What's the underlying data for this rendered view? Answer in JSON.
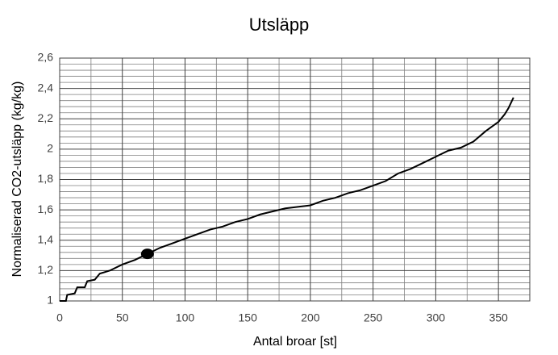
{
  "chart_data": {
    "type": "line",
    "title": "Utsläpp",
    "xlabel": "Antal broar [st]",
    "ylabel": "Normaliserad CO2-utsläpp (kg/kg)",
    "x": [
      0,
      5,
      6,
      12,
      14,
      20,
      22,
      28,
      32,
      40,
      50,
      60,
      70,
      80,
      90,
      100,
      110,
      120,
      130,
      140,
      150,
      160,
      170,
      180,
      190,
      200,
      210,
      220,
      230,
      240,
      250,
      260,
      270,
      280,
      290,
      300,
      310,
      320,
      330,
      340,
      350,
      355,
      358,
      362
    ],
    "values": [
      1.0,
      1.0,
      1.04,
      1.05,
      1.09,
      1.09,
      1.13,
      1.14,
      1.18,
      1.2,
      1.24,
      1.27,
      1.31,
      1.35,
      1.38,
      1.41,
      1.44,
      1.47,
      1.49,
      1.52,
      1.54,
      1.57,
      1.59,
      1.61,
      1.62,
      1.63,
      1.66,
      1.68,
      1.71,
      1.73,
      1.76,
      1.79,
      1.84,
      1.87,
      1.91,
      1.95,
      1.99,
      2.01,
      2.05,
      2.12,
      2.18,
      2.23,
      2.27,
      2.34
    ],
    "color": "#000000",
    "highlight": {
      "x": 70,
      "y": 1.31
    },
    "xlim": [
      0,
      375
    ],
    "ylim": [
      1,
      2.6
    ],
    "xticks": [
      0,
      50,
      100,
      150,
      200,
      250,
      300,
      350
    ],
    "yticks": [
      1,
      {
        "value": 1.2,
        "label": "1,2"
      },
      {
        "value": 1.4,
        "label": "1,4"
      },
      {
        "value": 1.6,
        "label": "1,6"
      },
      {
        "value": 1.8,
        "label": "1,8"
      },
      2,
      {
        "value": 2.2,
        "label": "2,2"
      },
      {
        "value": 2.4,
        "label": "2,4"
      },
      {
        "value": 2.6,
        "label": "2,6"
      }
    ],
    "xminorticks": [
      25,
      75,
      125,
      175,
      225,
      275,
      325,
      375
    ],
    "yminorticks": [
      1.04,
      1.08,
      1.12,
      1.16,
      1.24,
      1.28,
      1.32,
      1.36,
      1.44,
      1.48,
      1.52,
      1.56,
      1.64,
      1.68,
      1.72,
      1.76,
      1.84,
      1.88,
      1.92,
      1.96,
      2.04,
      2.08,
      2.12,
      2.16,
      2.24,
      2.28,
      2.32,
      2.36,
      2.44,
      2.48,
      2.52,
      2.56
    ],
    "grid": true
  }
}
